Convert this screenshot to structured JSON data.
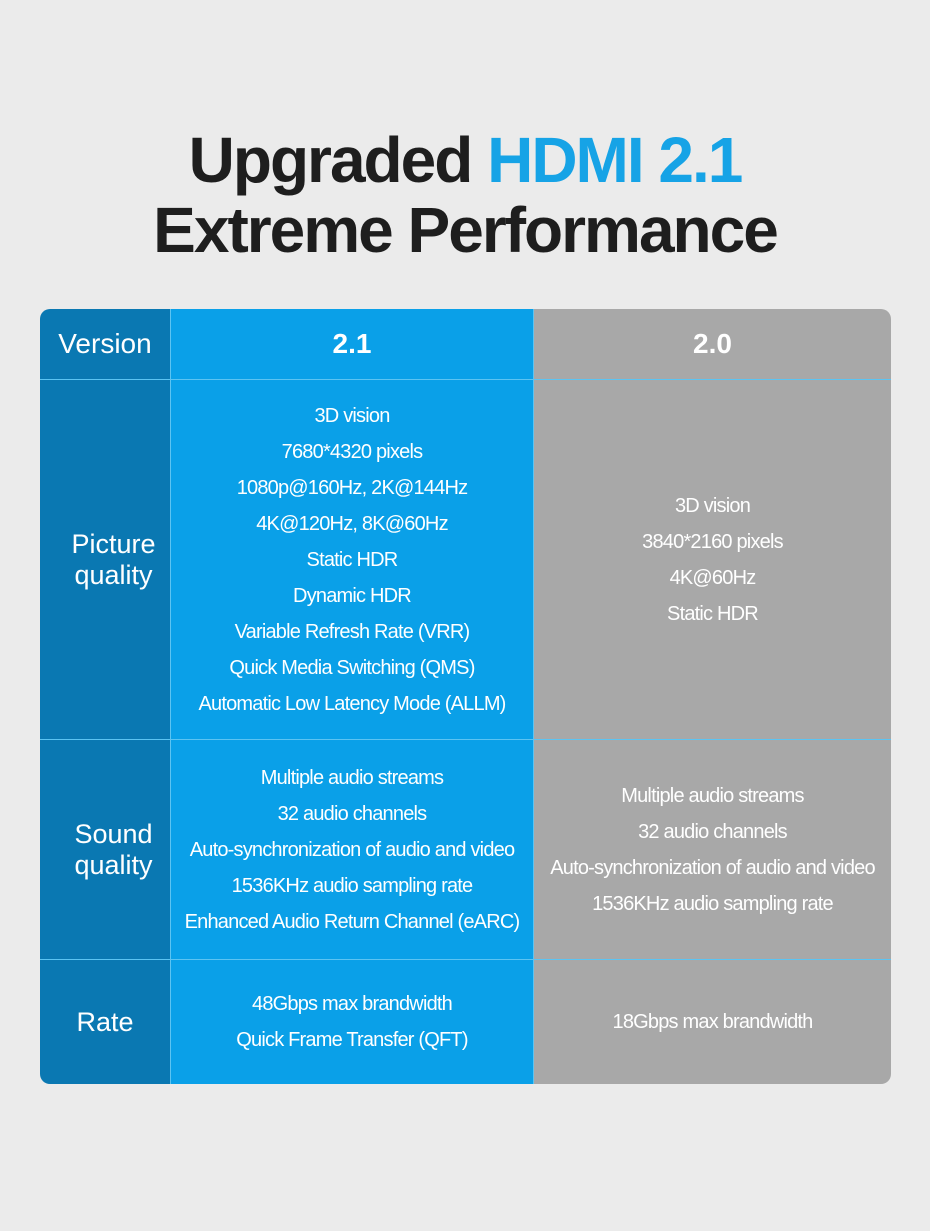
{
  "heading": {
    "line1_prefix": "Upgraded ",
    "line1_accent": "HDMI 2.1",
    "line2": "Extreme Performance"
  },
  "colors": {
    "accent": "#16a3e6",
    "label_column": "#0a78b2",
    "v21_column": "#0aa0e8",
    "v20_column": "#a8a8a8",
    "background": "#ebebeb"
  },
  "table": {
    "header": {
      "label": "Version",
      "v21": "2.1",
      "v20": "2.0"
    },
    "rows": [
      {
        "label": "Picture quality",
        "v21": [
          "3D vision",
          "7680*4320 pixels",
          "1080p@160Hz, 2K@144Hz",
          "4K@120Hz, 8K@60Hz",
          "Static HDR",
          "Dynamic HDR",
          "Variable Refresh Rate (VRR)",
          "Quick Media Switching (QMS)",
          "Automatic Low Latency Mode (ALLM)"
        ],
        "v20": [
          "3D vision",
          "3840*2160 pixels",
          "4K@60Hz",
          "Static HDR"
        ]
      },
      {
        "label": "Sound quality",
        "v21": [
          "Multiple audio streams",
          "32 audio channels",
          "Auto-synchronization of audio and video",
          "1536KHz audio sampling rate",
          "Enhanced Audio Return Channel (eARC)"
        ],
        "v20": [
          "Multiple audio streams",
          "32 audio channels",
          "Auto-synchronization of audio and video",
          "1536KHz audio sampling rate"
        ]
      },
      {
        "label": "Rate",
        "v21": [
          "48Gbps max brandwidth",
          "Quick Frame Transfer (QFT)"
        ],
        "v20": [
          "18Gbps  max brandwidth"
        ]
      }
    ]
  }
}
